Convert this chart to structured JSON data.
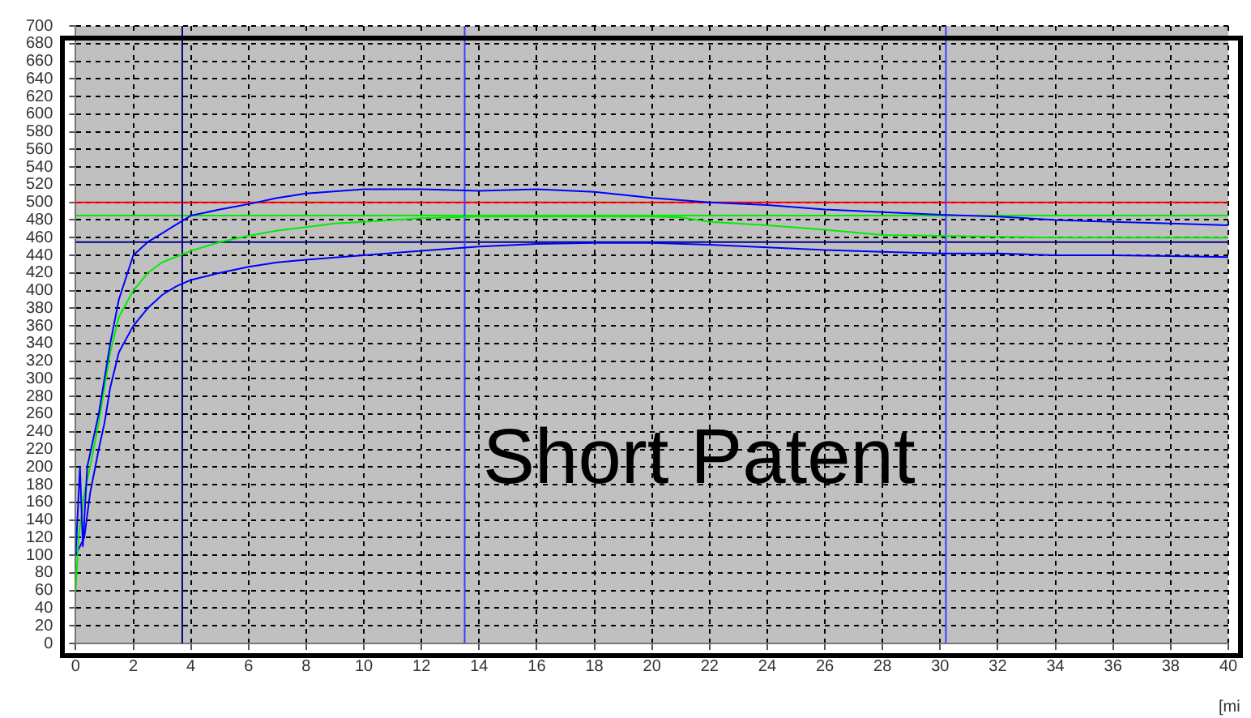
{
  "chart_data": {
    "type": "line",
    "xlabel": "[mi",
    "annotations": [
      "Short Patent"
    ],
    "xlim": [
      0,
      40
    ],
    "xticks": [
      0,
      2,
      4,
      6,
      8,
      10,
      12,
      14,
      16,
      18,
      20,
      22,
      24,
      26,
      28,
      30,
      32,
      34,
      36,
      38,
      40
    ],
    "ylim": [
      0,
      700
    ],
    "yticks": [
      0,
      20,
      40,
      60,
      80,
      100,
      120,
      140,
      160,
      180,
      200,
      220,
      240,
      260,
      280,
      300,
      320,
      340,
      360,
      380,
      400,
      420,
      440,
      460,
      480,
      500,
      520,
      540,
      560,
      580,
      600,
      620,
      640,
      660,
      680,
      700
    ],
    "grid": true,
    "legend": false,
    "marker": "none",
    "line_style": "solid",
    "series": [
      {
        "color": "#0000ff",
        "x": [
          0,
          0.15,
          0.25,
          0.4,
          0.6,
          0.8,
          1,
          1.2,
          1.5,
          2,
          2.5,
          3,
          3.5,
          4,
          5,
          6,
          7,
          8,
          10,
          12,
          14,
          16,
          18,
          20,
          22,
          24,
          26,
          28,
          30,
          32,
          34,
          36,
          38,
          40
        ],
        "values": [
          100,
          200,
          110,
          200,
          230,
          260,
          300,
          340,
          390,
          440,
          455,
          465,
          475,
          485,
          492,
          498,
          505,
          510,
          515,
          515,
          513,
          515,
          512,
          505,
          500,
          497,
          492,
          489,
          486,
          484,
          480,
          478,
          476,
          474
        ]
      },
      {
        "color": "#00ee00",
        "x": [
          0,
          0.1,
          0.3,
          0.5,
          0.8,
          1,
          1.2,
          1.5,
          2,
          2.5,
          3,
          4,
          5,
          6,
          7,
          8,
          9,
          10,
          12,
          14,
          16,
          18,
          20,
          21,
          22,
          24,
          26,
          28,
          30,
          32,
          34,
          36,
          38,
          40
        ],
        "values": [
          60,
          120,
          170,
          200,
          250,
          290,
          330,
          370,
          400,
          420,
          432,
          445,
          455,
          462,
          468,
          472,
          476,
          478,
          482,
          484,
          484,
          484,
          484,
          483,
          478,
          474,
          469,
          463,
          462,
          461,
          460,
          460,
          460,
          460
        ]
      },
      {
        "color": "#0000ff",
        "x": [
          0,
          0.3,
          0.5,
          0.8,
          1,
          1.2,
          1.5,
          2,
          2.5,
          3,
          3.5,
          4,
          5,
          6,
          7,
          8,
          10,
          12,
          14,
          16,
          18,
          20,
          22,
          24,
          26,
          28,
          30,
          32,
          34,
          36,
          38,
          40
        ],
        "values": [
          100,
          120,
          170,
          220,
          250,
          290,
          330,
          360,
          380,
          395,
          405,
          412,
          420,
          427,
          432,
          435,
          440,
          445,
          450,
          453,
          454,
          454,
          452,
          449,
          446,
          444,
          442,
          442,
          440,
          440,
          439,
          438
        ]
      }
    ],
    "ref_lines": [
      {
        "axis": "y",
        "value": 500,
        "color": "#ff0000"
      },
      {
        "axis": "y",
        "value": 485,
        "color": "#00ee00"
      },
      {
        "axis": "y",
        "value": 455,
        "color": "#000080"
      },
      {
        "axis": "x",
        "value": 3.7,
        "color": "#000080"
      },
      {
        "axis": "x",
        "value": 13.5,
        "color": "#4040ff"
      },
      {
        "axis": "x",
        "value": 30.2,
        "color": "#4040ff"
      }
    ]
  }
}
